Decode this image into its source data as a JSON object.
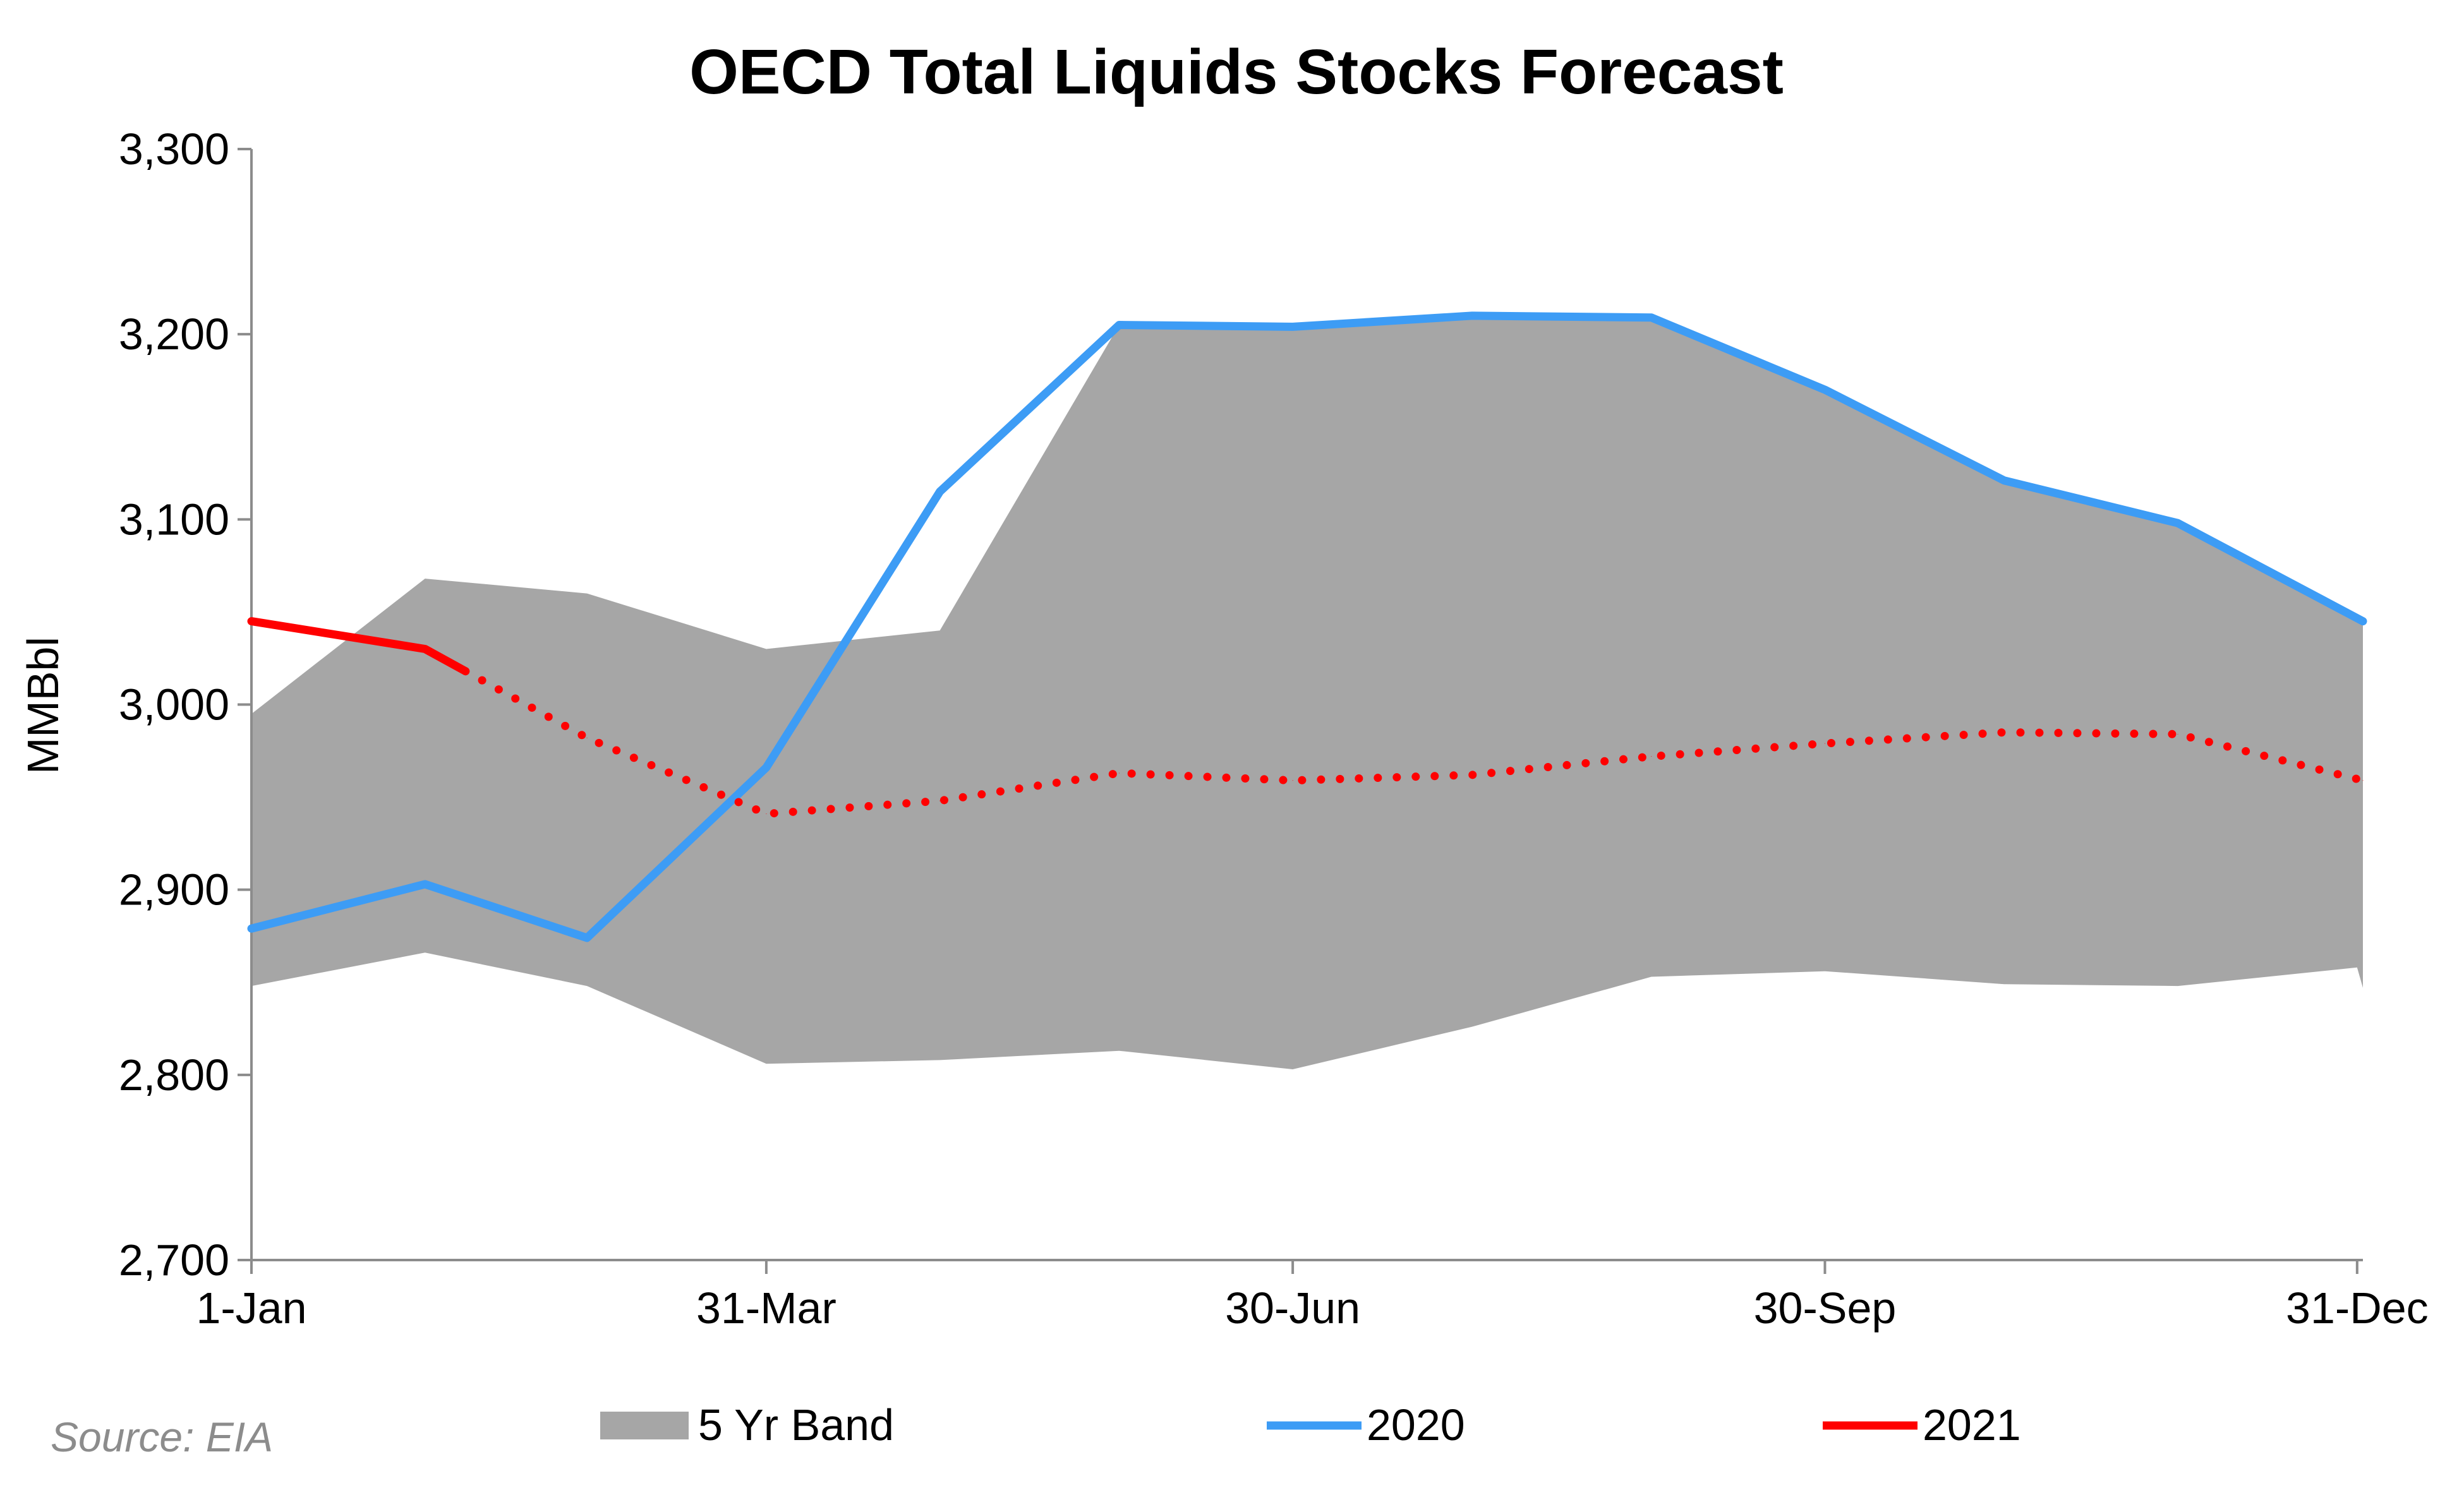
{
  "source_note": "Source: EIA",
  "chart_data": {
    "type": "area",
    "title": "OECD Total Liquids Stocks Forecast",
    "xlabel": "",
    "ylabel": "MMBbl",
    "ylim": [
      2700,
      3300
    ],
    "yticks": [
      2700,
      2800,
      2900,
      3000,
      3100,
      3200,
      3300
    ],
    "ytick_labels": [
      "2,700",
      "2,800",
      "2,900",
      "3,000",
      "3,100",
      "3,200",
      "3,300"
    ],
    "xlim": [
      1,
      366
    ],
    "xticks": [
      1,
      90,
      181,
      273,
      365
    ],
    "xtick_labels": [
      "1-Jan",
      "31-Mar",
      "30-Jun",
      "30-Sep",
      "31-Dec"
    ],
    "grid": false,
    "legend_position": "bottom",
    "band": {
      "name": "5 Yr Band",
      "color": "#a6a6a6",
      "x": [
        1,
        31,
        59,
        90,
        120,
        151,
        181,
        212,
        243,
        273,
        304,
        334,
        365,
        366
      ],
      "upper": [
        2995,
        3068,
        3060,
        3030,
        3040,
        3205,
        3205,
        3210,
        3210,
        3170,
        3120,
        3098,
        3045,
        3045
      ],
      "lower": [
        2848,
        2866,
        2848,
        2806,
        2808,
        2813,
        2803,
        2826,
        2853,
        2856,
        2849,
        2848,
        2858,
        2847
      ]
    },
    "series": [
      {
        "name": "2020",
        "color": "#3d9cf5",
        "style": "solid",
        "x": [
          1,
          31,
          59,
          90,
          120,
          151,
          181,
          212,
          243,
          273,
          304,
          334,
          366
        ],
        "values": [
          2879,
          2903,
          2874,
          2966,
          3115,
          3205,
          3204,
          3210,
          3209,
          3170,
          3121,
          3098,
          3045
        ]
      },
      {
        "name": "2021",
        "color": "#ff0000",
        "style": "solid-then-dotted",
        "solid_x": [
          1,
          31,
          38
        ],
        "solid_values": [
          3045,
          3030,
          3018
        ],
        "dotted_x": [
          38,
          59,
          90,
          120,
          151,
          181,
          212,
          243,
          273,
          304,
          334,
          366
        ],
        "dotted_values": [
          3018,
          2982,
          2941,
          2948,
          2963,
          2959,
          2962,
          2972,
          2979,
          2985,
          2984,
          2959
        ]
      }
    ]
  }
}
